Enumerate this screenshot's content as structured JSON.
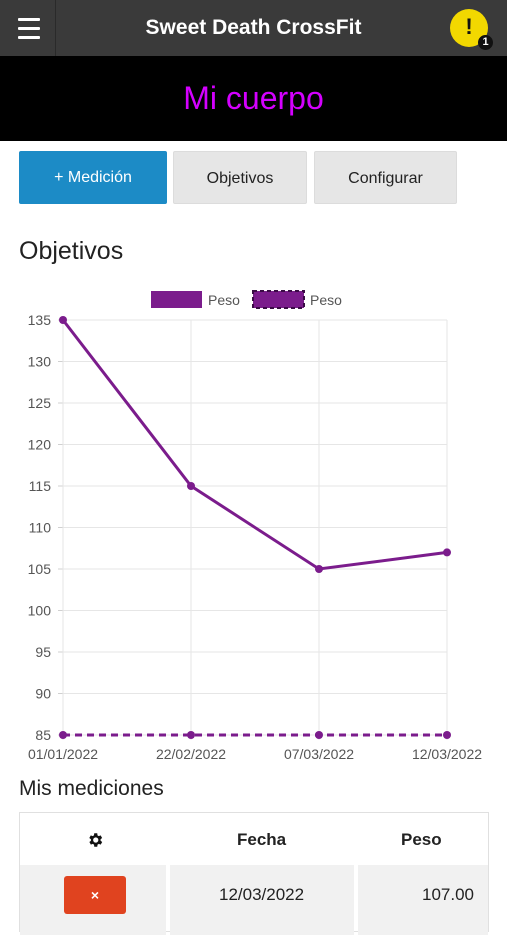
{
  "header": {
    "title": "Sweet Death CrossFit",
    "notification_mark": "!",
    "notification_count": "1"
  },
  "hero": {
    "title": "Mi cuerpo"
  },
  "actions": {
    "add_measurement": "+ Medición",
    "goals": "Objetivos",
    "configure": "Configurar"
  },
  "objectives_section": {
    "title": "Objetivos"
  },
  "chart_data": {
    "type": "line",
    "categories": [
      "01/01/2022",
      "22/02/2022",
      "07/03/2022",
      "12/03/2022"
    ],
    "series": [
      {
        "name": "Peso",
        "values": [
          135,
          115,
          105,
          107
        ],
        "style": "solid",
        "color": "#7b1c8c"
      },
      {
        "name": "Peso",
        "values": [
          85,
          85,
          85,
          85
        ],
        "style": "dashed",
        "color": "#7b1c8c"
      }
    ],
    "ylim": [
      85,
      135
    ],
    "yticks": [
      85,
      90,
      95,
      100,
      105,
      110,
      115,
      120,
      125,
      130,
      135
    ],
    "grid": true,
    "legend_position": "top"
  },
  "measurements": {
    "title": "Mis mediciones",
    "columns": {
      "date": "Fecha",
      "weight": "Peso"
    },
    "settings_icon": "gear-icon",
    "delete_label": "×",
    "rows": [
      {
        "date": "12/03/2022",
        "weight": "107.00"
      }
    ]
  },
  "colors": {
    "topbar": "#3a3a3a",
    "accent_magenta": "#d400ff",
    "primary_button": "#1c8bc6",
    "series": "#7b1c8c",
    "delete_button": "#e0431f",
    "alert": "#f2d800"
  }
}
